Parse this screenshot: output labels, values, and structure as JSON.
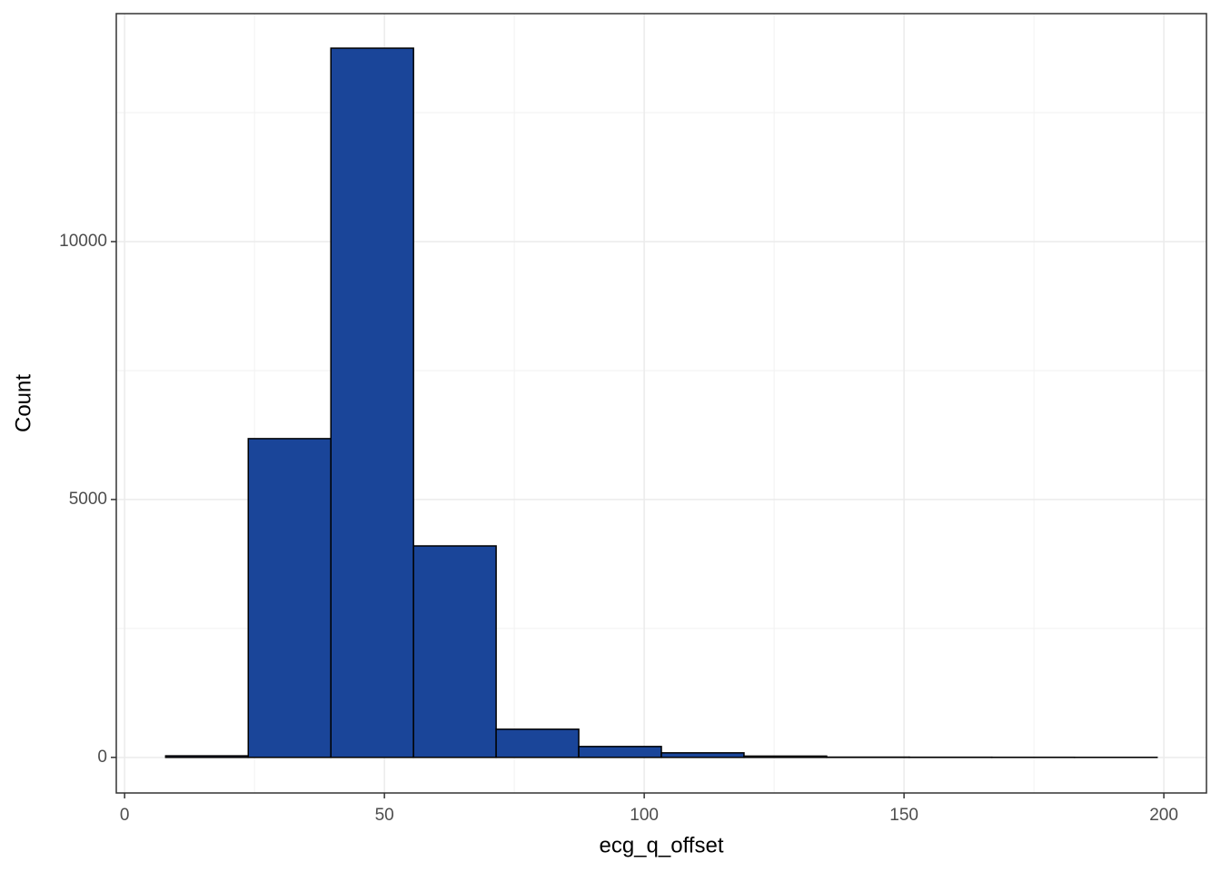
{
  "chart_data": {
    "type": "histogram",
    "x_label": "ecg_q_offset",
    "y_label": "Count",
    "bins": [
      7.9,
      23.8,
      39.7,
      55.6,
      71.5,
      87.4,
      103.3,
      119.2,
      135.1,
      151.0,
      166.9,
      182.8,
      198.7
    ],
    "values": [
      30,
      6180,
      13750,
      4100,
      546,
      211,
      88,
      25,
      5,
      3,
      2,
      1
    ],
    "color": "#1a4599",
    "edge_color": "#000000",
    "xlim": [
      -1.6,
      208.2
    ],
    "ylim": [
      -690,
      14420
    ],
    "xticks": [
      0,
      50,
      100,
      150,
      200
    ],
    "yticks": [
      0,
      5000,
      10000
    ],
    "minor_xticks": [
      25,
      75,
      125,
      175
    ],
    "minor_yticks": [
      2500,
      7500,
      12500
    ],
    "grid": true
  }
}
